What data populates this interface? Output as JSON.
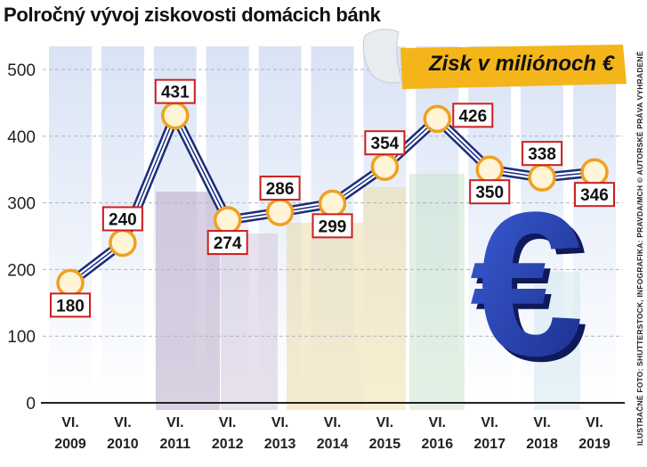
{
  "title": "Polročný vývoj ziskovosti domácich bánk",
  "badge_label": "Zisk v miliónoch €",
  "credit": "ILUSTRAČNÉ FOTO: SHUTTERSTOCK, INFOGRAFIKA: PRAVDA/MCH © AUTORSKÉ PRÁVA VYHRADENÉ",
  "colors": {
    "line": "#1a2d7c",
    "marker_fill": "#fff4d6",
    "marker_stroke": "#f0a020",
    "label_border": "#cc1f1f",
    "badge": "#f3b51a",
    "euro": "#2443b8"
  },
  "chart_data": {
    "type": "line",
    "categories": [
      [
        "VI.",
        "2009"
      ],
      [
        "VI.",
        "2010"
      ],
      [
        "VI.",
        "2011"
      ],
      [
        "VI.",
        "2012"
      ],
      [
        "VI.",
        "2013"
      ],
      [
        "VI.",
        "2014"
      ],
      [
        "VI.",
        "2015"
      ],
      [
        "VI.",
        "2016"
      ],
      [
        "VI.",
        "2017"
      ],
      [
        "VI.",
        "2018"
      ],
      [
        "VI.",
        "2019"
      ]
    ],
    "values": [
      180,
      240,
      431,
      274,
      286,
      299,
      354,
      426,
      350,
      338,
      346
    ],
    "label_placement": [
      "below",
      "above",
      "above",
      "below",
      "above",
      "below",
      "above",
      "right",
      "below",
      "above",
      "below"
    ],
    "ylim": [
      0,
      500
    ],
    "yticks": [
      0,
      100,
      200,
      300,
      400,
      500
    ],
    "grid": true
  }
}
